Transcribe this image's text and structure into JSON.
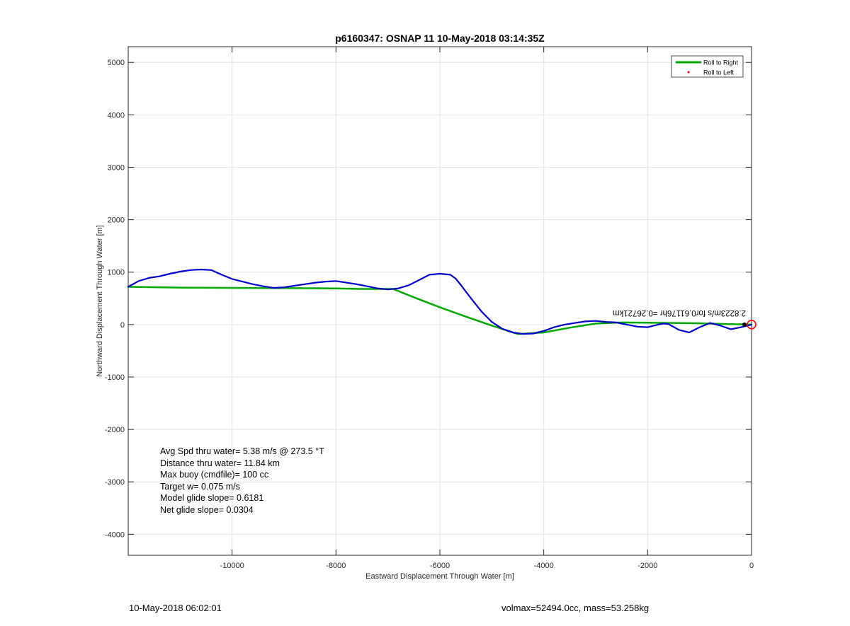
{
  "chart_data": {
    "type": "line",
    "title": "p6160347: OSNAP 11 10-May-2018 03:14:35Z",
    "xlabel": "Eastward Displacement Through Water [m]",
    "ylabel": "Northward Displacement Through Water [m]",
    "xlim": [
      -12000,
      0
    ],
    "ylim": [
      -4400,
      5300
    ],
    "xticks": [
      -10000,
      -8000,
      -6000,
      -4000,
      -2000,
      0
    ],
    "yticks": [
      -4000,
      -3000,
      -2000,
      -1000,
      0,
      1000,
      2000,
      3000,
      4000,
      5000
    ],
    "grid": true,
    "legend_placement": "top-right",
    "legend": [
      {
        "label": "Roll to Right",
        "color": "#00aa00",
        "marker": "line"
      },
      {
        "label": "Roll to Left",
        "color": "#ff0000",
        "marker": "dot"
      }
    ],
    "series": [
      {
        "color": "#00aa00",
        "x": [
          -12000,
          -11000,
          -10000,
          -9000,
          -8000,
          -7500,
          -6900,
          -6500,
          -6000,
          -5500,
          -5000,
          -4500,
          -4000,
          -3500,
          -3000,
          -2500,
          -2000,
          -1500,
          -1000,
          -500,
          0
        ],
        "y": [
          720,
          705,
          700,
          695,
          690,
          680,
          680,
          520,
          330,
          150,
          -20,
          -180,
          -150,
          -60,
          20,
          40,
          35,
          30,
          25,
          10,
          0
        ]
      },
      {
        "color": "#0000cc",
        "x": [
          -12000,
          -11800,
          -11600,
          -11400,
          -11200,
          -11000,
          -10800,
          -10600,
          -10400,
          -10200,
          -10000,
          -9800,
          -9600,
          -9400,
          -9200,
          -9000,
          -8800,
          -8600,
          -8400,
          -8200,
          -8000,
          -7800,
          -7600,
          -7400,
          -7200,
          -7000,
          -6800,
          -6600,
          -6400,
          -6200,
          -6000,
          -5800,
          -5700,
          -5600,
          -5400,
          -5200,
          -5000,
          -4800,
          -4600,
          -4400,
          -4200,
          -4000,
          -3800,
          -3600,
          -3400,
          -3200,
          -3000,
          -2800,
          -2600,
          -2400,
          -2200,
          -2000,
          -1800,
          -1700,
          -1600,
          -1400,
          -1200,
          -1000,
          -800,
          -600,
          -400,
          -200,
          0
        ],
        "y": [
          720,
          830,
          890,
          920,
          970,
          1010,
          1040,
          1050,
          1040,
          950,
          870,
          820,
          770,
          730,
          700,
          710,
          740,
          770,
          800,
          820,
          830,
          800,
          770,
          730,
          690,
          670,
          690,
          750,
          850,
          950,
          970,
          950,
          880,
          760,
          500,
          250,
          50,
          -80,
          -150,
          -180,
          -170,
          -120,
          -50,
          0,
          30,
          60,
          70,
          50,
          40,
          0,
          -40,
          -50,
          0,
          20,
          10,
          -100,
          -150,
          -50,
          30,
          -20,
          -90,
          -50,
          0
        ]
      }
    ],
    "endpoint_marker": {
      "x": 0,
      "y": 0,
      "color": "#ff0000"
    },
    "mirrored_annotation": "2.8223m/s for0.61176hr =0.26721km",
    "stats": [
      "Avg Spd thru water=  5.38 m/s @ 273.5 °T",
      "Distance thru water= 11.84 km",
      "Max buoy (cmdfile)= 100 cc",
      "Target w= 0.075 m/s",
      "Model glide slope= 0.6181",
      "Net glide slope= 0.0304"
    ]
  },
  "footer": {
    "timestamp": "10-May-2018 06:02:01",
    "volmax_mass": "volmax=52494.0cc, mass=53.258kg"
  }
}
